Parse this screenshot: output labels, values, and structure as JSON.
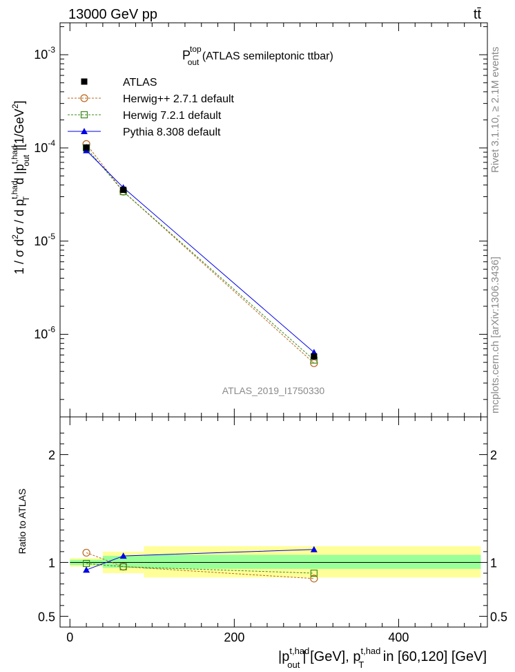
{
  "header": {
    "left": "13000 GeV pp",
    "right": "tt̄"
  },
  "side_labels": {
    "rivet": "Rivet 3.1.10, ≥ 2.1M events",
    "mcplots": "mcplots.cern.ch [arXiv:1306.3436]"
  },
  "colors": {
    "atlas": "#000000",
    "herwigpp": "#b8651a",
    "herwig7": "#3a8a1a",
    "pythia": "#0000e6",
    "band_inner": "#99ff99",
    "band_outer": "#ffff99",
    "watermark": "#8a8a8a"
  },
  "chart_data": {
    "type": "line",
    "title": {
      "main": "P",
      "sup": "top",
      "sub": "out",
      "rest": " (ATLAS semileptonic ttbar)"
    },
    "watermark": "ATLAS_2019_I1750330",
    "ylabel": {
      "a": "1 / σ d",
      "a_sup": "2",
      "b": "σ / d p",
      "b_sup": "t,had",
      "b_sub": "T",
      "c": " d |p",
      "c_sup": "t,had",
      "c_sub": "out",
      "d": "|[1/GeV",
      "d_sup": "2",
      "e": "]"
    },
    "xlabel": {
      "a": "|p",
      "a_sup": "t,had",
      "a_sub": "out",
      "b": "| [GeV], p",
      "b_sup": "t,had",
      "b_sub": "T",
      "c": " in [60,120] [GeV]"
    },
    "ratio_ylabel": "Ratio to ATLAS",
    "x_range": [
      -12,
      508
    ],
    "y_range_log": [
      1.3e-07,
      0.0022
    ],
    "y_scale": "log",
    "ratio_range": [
      0.4,
      2.35
    ],
    "x_ticks": [
      {
        "value": 0,
        "label": "0"
      },
      {
        "value": 200,
        "label": "200"
      },
      {
        "value": 400,
        "label": "400"
      }
    ],
    "y_ticks": [
      {
        "value": 1e-06,
        "base": "10",
        "exp": "-6"
      },
      {
        "value": 1e-05,
        "base": "10",
        "exp": "-5"
      },
      {
        "value": 0.0001,
        "base": "10",
        "exp": "-4"
      },
      {
        "value": 0.001,
        "base": "10",
        "exp": "-3"
      }
    ],
    "ratio_ticks": [
      {
        "value": 0.5,
        "label": "0.5"
      },
      {
        "value": 1,
        "label": "1"
      },
      {
        "value": 2,
        "label": "2"
      }
    ],
    "legend": {
      "position": "top-left"
    },
    "series": [
      {
        "name": "ATLAS",
        "key": "atlas",
        "style": "data",
        "x": [
          20,
          65,
          297
        ],
        "y": [
          0.000101,
          3.55e-05,
          5.8e-07
        ],
        "ratio": [
          1,
          1,
          1
        ]
      },
      {
        "name": "Herwig++ 2.7.1 default",
        "key": "herwigpp",
        "style": "dashed",
        "marker": "circle",
        "x": [
          20,
          65,
          297
        ],
        "y": [
          0.00011,
          3.4e-05,
          4.9e-07
        ],
        "ratio": [
          1.09,
          0.96,
          0.85
        ]
      },
      {
        "name": "Herwig 7.2.1 default",
        "key": "herwig7",
        "style": "dashed",
        "marker": "square",
        "x": [
          20,
          65,
          297
        ],
        "y": [
          0.0001,
          3.4e-05,
          5.3e-07
        ],
        "ratio": [
          0.99,
          0.96,
          0.9
        ]
      },
      {
        "name": "Pythia 8.308 default",
        "key": "pythia",
        "style": "solid",
        "marker": "triangle",
        "x": [
          20,
          65,
          297
        ],
        "y": [
          9.4e-05,
          3.75e-05,
          6.4e-07
        ],
        "ratio": [
          0.93,
          1.06,
          1.12
        ]
      }
    ],
    "uncertainty_bands": [
      {
        "x": [
          0,
          40
        ],
        "inner": [
          0.975,
          1.025
        ],
        "outer": [
          0.96,
          1.04
        ]
      },
      {
        "x": [
          40,
          90
        ],
        "inner": [
          0.95,
          1.06
        ],
        "outer": [
          0.9,
          1.1
        ]
      },
      {
        "x": [
          90,
          500
        ],
        "inner": [
          0.94,
          1.07
        ],
        "outer": [
          0.86,
          1.15
        ]
      }
    ]
  }
}
